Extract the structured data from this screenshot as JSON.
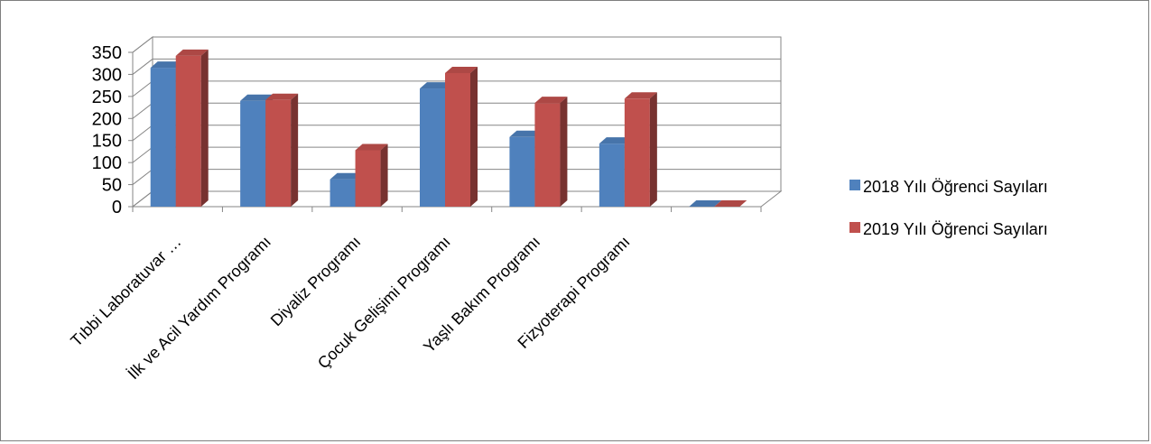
{
  "chart_data": {
    "type": "bar",
    "categories": [
      "Tıbbi Laboratuvar …",
      "İlk ve Acil Yardım Programı",
      "Diyaliz Programı",
      "Çocuk Gelişimi Programı",
      "Yaşlı Bakım Programı",
      "Fizyoterapi Programı",
      ""
    ],
    "series": [
      {
        "name": "2018 Yılı Öğrenci Sayıları",
        "color": "#4f81bd",
        "values": [
          315,
          240,
          62,
          268,
          158,
          143,
          0
        ]
      },
      {
        "name": "2019 Yılı Öğrenci Sayıları",
        "color": "#c0504d",
        "values": [
          342,
          242,
          128,
          303,
          235,
          245,
          0
        ]
      }
    ],
    "ylim": [
      0,
      350
    ],
    "yticks": [
      0,
      50,
      100,
      150,
      200,
      250,
      300,
      350
    ],
    "grid": true,
    "legend": "right",
    "style": "3d-clustered-column"
  }
}
